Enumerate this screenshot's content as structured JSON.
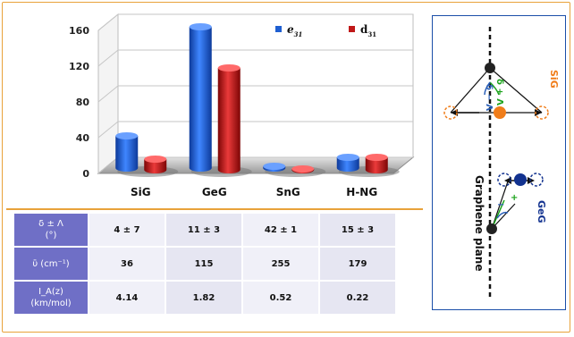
{
  "chart_data": {
    "type": "bar",
    "categories": [
      "SiG",
      "GeG",
      "SnG",
      "H-NG"
    ],
    "series": [
      {
        "name_main": "e",
        "name_sub": "31",
        "values": [
          36,
          158,
          2,
          12
        ],
        "color": "#1f5fd1"
      },
      {
        "name_main": "d",
        "name_sub": "31",
        "values": [
          12,
          114,
          1,
          14
        ],
        "color": "#c01818"
      }
    ],
    "yticks": [
      "0",
      "40",
      "80",
      "120",
      "160"
    ],
    "ylim": [
      0,
      160
    ],
    "grid": true,
    "legend": "top-right"
  },
  "table": {
    "rows": [
      {
        "h1": "δ ± Λ",
        "h2": "(°)",
        "vals": [
          "4 ± 7",
          "11 ± 3",
          "42 ± 1",
          "15 ± 3"
        ]
      },
      {
        "h1": "ῡ (cm⁻¹)",
        "h2": "",
        "vals": [
          "36",
          "115",
          "255",
          "179"
        ]
      },
      {
        "h1": "I_A(z)",
        "h2": "(km/mol)",
        "vals": [
          "4.14",
          "1.82",
          "0.52",
          "0.22"
        ]
      }
    ]
  },
  "diagram": {
    "sig_label": "SiG",
    "geg_label": "GeG",
    "plane_label": "Graphene plane",
    "delta_plus": "δ + Λ",
    "delta_minus": "δ − Λ",
    "colors": {
      "sig_atom": "#f07d1a",
      "geg_atom": "#12328f",
      "carbon": "#222222",
      "plane": "#111111",
      "green": "#1aa21a",
      "blue": "#2a5fb8"
    }
  }
}
